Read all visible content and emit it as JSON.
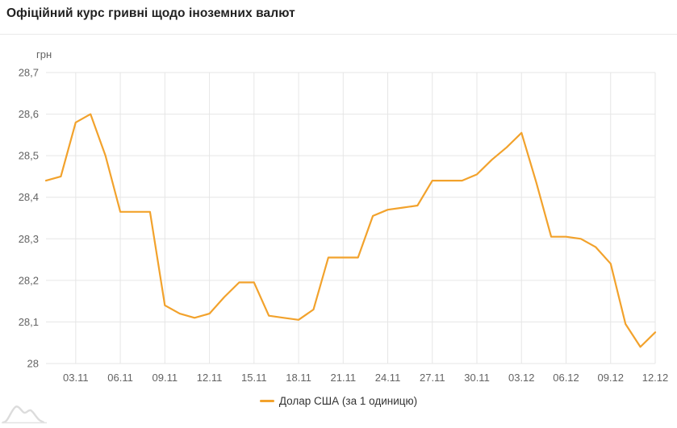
{
  "header": {
    "title": "Офіційний курс гривні щодо іноземних валют"
  },
  "colors": {
    "line": "#f2a22c",
    "grid": "#e6e6e6",
    "axis_text": "#636363",
    "title_text": "#212121",
    "legend_text": "#333333",
    "divider": "#e9e9e9",
    "watermark": "#dcdcdc"
  },
  "chart_data": {
    "type": "line",
    "title": "Офіційний курс гривні щодо іноземних валют",
    "xlabel": "",
    "ylabel": "грн",
    "ylim": [
      28.0,
      28.7
    ],
    "grid": true,
    "legend_position": "bottom",
    "x": [
      "01.11",
      "02.11",
      "03.11",
      "04.11",
      "05.11",
      "06.11",
      "07.11",
      "08.11",
      "09.11",
      "10.11",
      "11.11",
      "12.11",
      "13.11",
      "14.11",
      "15.11",
      "16.11",
      "17.11",
      "18.11",
      "19.11",
      "20.11",
      "21.11",
      "22.11",
      "23.11",
      "24.11",
      "25.11",
      "26.11",
      "27.11",
      "28.11",
      "29.11",
      "30.11",
      "01.12",
      "02.12",
      "03.12",
      "04.12",
      "05.12",
      "06.12",
      "07.12",
      "08.12",
      "09.12",
      "10.12",
      "11.12",
      "12.12"
    ],
    "series": [
      {
        "name": "Долар США (за 1 одиницю)",
        "color": "#f2a22c",
        "values": [
          28.44,
          28.45,
          28.58,
          28.6,
          28.5,
          28.365,
          28.365,
          28.365,
          28.14,
          28.12,
          28.11,
          28.12,
          28.16,
          28.195,
          28.195,
          28.115,
          28.11,
          28.105,
          28.13,
          28.255,
          28.255,
          28.255,
          28.355,
          28.37,
          28.375,
          28.38,
          28.44,
          28.44,
          28.44,
          28.455,
          28.49,
          28.52,
          28.555,
          28.435,
          28.305,
          28.305,
          28.3,
          28.28,
          28.24,
          28.095,
          28.04,
          28.075
        ]
      }
    ],
    "y_ticks": [
      {
        "value": 28.7,
        "label": "28,7"
      },
      {
        "value": 28.6,
        "label": "28,6"
      },
      {
        "value": 28.5,
        "label": "28,5"
      },
      {
        "value": 28.4,
        "label": "28,4"
      },
      {
        "value": 28.3,
        "label": "28,3"
      },
      {
        "value": 28.2,
        "label": "28,2"
      },
      {
        "value": 28.1,
        "label": "28,1"
      },
      {
        "value": 28.0,
        "label": "28"
      }
    ],
    "x_ticks": [
      {
        "index": 2,
        "label": "03.11"
      },
      {
        "index": 5,
        "label": "06.11"
      },
      {
        "index": 8,
        "label": "09.11"
      },
      {
        "index": 11,
        "label": "12.11"
      },
      {
        "index": 14,
        "label": "15.11"
      },
      {
        "index": 17,
        "label": "18.11"
      },
      {
        "index": 20,
        "label": "21.11"
      },
      {
        "index": 23,
        "label": "24.11"
      },
      {
        "index": 26,
        "label": "27.11"
      },
      {
        "index": 29,
        "label": "30.11"
      },
      {
        "index": 32,
        "label": "03.12"
      },
      {
        "index": 35,
        "label": "06.12"
      },
      {
        "index": 38,
        "label": "09.12"
      },
      {
        "index": 41,
        "label": "12.12"
      }
    ]
  }
}
